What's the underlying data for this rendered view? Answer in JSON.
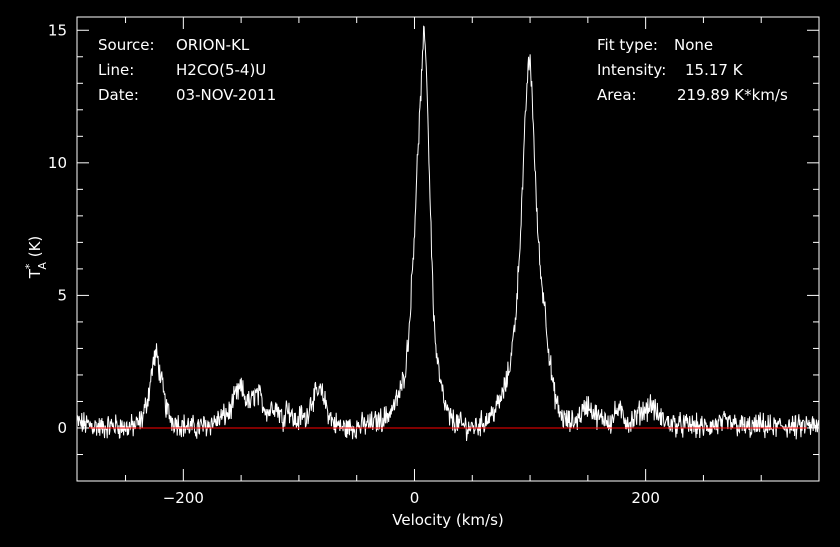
{
  "header": {
    "source_label": "Source:",
    "source_value": "ORION-KL",
    "line_label": "Line:",
    "line_value": "H2CO(5-4)U",
    "date_label": "Date:",
    "date_value": "03-NOV-2011",
    "fit_label": "Fit type:",
    "fit_value": "None",
    "intensity_label": "Intensity:",
    "intensity_value": "15.17 K",
    "area_label": "Area:",
    "area_value": "219.89 K*km/s"
  },
  "chart_data": {
    "type": "line",
    "xlabel": "Velocity (km/s)",
    "ylabel_main": "T",
    "ylabel_sup": "*",
    "ylabel_sub": "A",
    "ylabel_unit": " (K)",
    "xlim": [
      -292,
      350
    ],
    "ylim": [
      -2,
      15.5
    ],
    "x_ticks": [
      -200,
      0,
      200
    ],
    "y_ticks": [
      0,
      5,
      10,
      15
    ],
    "grid": false,
    "colors": {
      "trace": "#ffffff",
      "baseline": "#ff0000",
      "axes": "#ffffff",
      "background": "#000000"
    },
    "baseline_y": 0,
    "series": [
      {
        "x": [
          -292,
          -280,
          -270,
          -260,
          -250,
          -240,
          -235,
          -230,
          -226,
          -223,
          -220,
          -215,
          -210,
          -200,
          -190,
          -180,
          -170,
          -160,
          -155,
          -150,
          -146,
          -142,
          -138,
          -134,
          -130,
          -126,
          -122,
          -118,
          -114,
          -110,
          -106,
          -102,
          -98,
          -94,
          -90,
          -86,
          -82,
          -78,
          -74,
          -70,
          -66,
          -62,
          -55,
          -45,
          -35,
          -25,
          -18,
          -12,
          -8,
          -5,
          -3,
          0,
          3,
          6,
          8,
          10,
          12,
          14,
          16,
          18,
          22,
          26,
          30,
          36,
          42,
          48,
          55,
          62,
          68,
          74,
          80,
          84,
          88,
          91,
          94,
          96,
          98,
          100,
          102,
          104,
          106,
          108,
          110,
          113,
          116,
          120,
          125,
          130,
          135,
          140,
          145,
          150,
          155,
          160,
          165,
          170,
          175,
          180,
          185,
          190,
          195,
          200,
          205,
          210,
          215,
          220,
          230,
          240,
          250,
          260,
          270,
          280,
          290,
          300,
          310,
          320,
          330,
          340,
          350
        ],
        "y": [
          0.2,
          0.1,
          0.0,
          0.1,
          0.0,
          0.1,
          0.4,
          1.3,
          2.5,
          2.8,
          2.0,
          0.8,
          0.3,
          0.1,
          0.0,
          0.1,
          0.3,
          0.6,
          1.2,
          1.5,
          1.1,
          0.9,
          1.3,
          1.2,
          0.8,
          0.6,
          0.9,
          0.7,
          0.3,
          0.9,
          0.4,
          0.2,
          0.5,
          0.3,
          1.0,
          1.2,
          1.4,
          1.1,
          0.5,
          0.2,
          0.1,
          0.0,
          0.0,
          0.1,
          0.2,
          0.4,
          0.8,
          1.4,
          2.2,
          3.5,
          5.0,
          7.5,
          10.5,
          13.0,
          14.8,
          14.2,
          11.0,
          8.0,
          5.0,
          3.2,
          1.8,
          0.9,
          0.4,
          0.2,
          0.1,
          0.0,
          0.1,
          0.3,
          0.6,
          1.0,
          1.8,
          2.8,
          4.5,
          6.8,
          9.5,
          11.8,
          13.5,
          13.8,
          12.5,
          10.0,
          8.0,
          6.5,
          5.5,
          4.5,
          3.0,
          1.5,
          0.6,
          0.3,
          0.2,
          0.3,
          0.6,
          0.9,
          0.6,
          0.3,
          0.4,
          0.2,
          0.7,
          0.5,
          0.2,
          0.3,
          0.6,
          0.7,
          0.9,
          0.5,
          0.3,
          0.2,
          0.1,
          0.1,
          0.0,
          0.1,
          0.2,
          0.1,
          0.0,
          0.1,
          0.0,
          0.1,
          0.0,
          0.1,
          0.0
        ]
      }
    ]
  }
}
